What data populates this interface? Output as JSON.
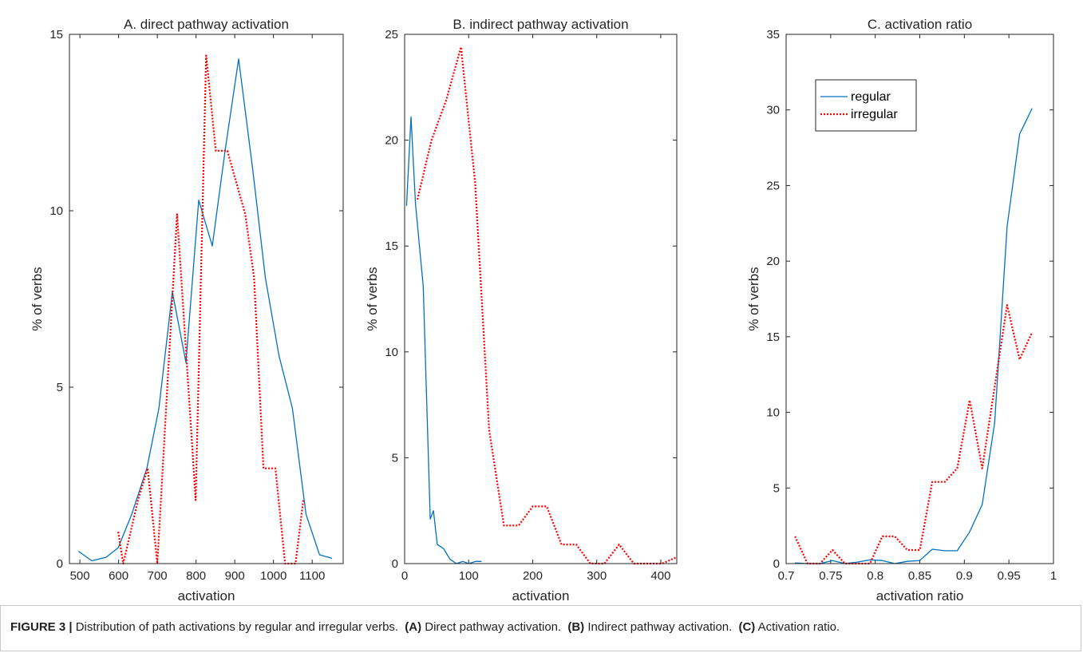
{
  "chart_data": [
    {
      "type": "line",
      "title": "A. direct pathway activation",
      "xlabel": "activation",
      "ylabel": "% of verbs",
      "xlim": [
        473,
        1180
      ],
      "xticks": [
        500,
        600,
        700,
        800,
        900,
        1000,
        1100
      ],
      "ylim": [
        0,
        15
      ],
      "yticks": [
        0,
        5,
        10,
        15
      ],
      "series": [
        {
          "name": "regular",
          "color": "#0072bd",
          "x": [
            496,
            531,
            568,
            599,
            634,
            673,
            704,
            739,
            774,
            807,
            842,
            875,
            910,
            946,
            979,
            1014,
            1049,
            1084,
            1119,
            1151
          ],
          "values": [
            0.35,
            0.08,
            0.18,
            0.45,
            1.4,
            2.7,
            4.4,
            7.7,
            5.7,
            10.3,
            9.0,
            11.7,
            14.3,
            11.2,
            8.1,
            5.9,
            4.4,
            1.4,
            0.25,
            0.15
          ]
        },
        {
          "name": "irregular",
          "color": "#ff0000",
          "dash": "dotted",
          "x": [
            599,
            612,
            650,
            675,
            700,
            751,
            799,
            826,
            851,
            881,
            927,
            950,
            974,
            1005,
            1030,
            1057,
            1077
          ],
          "values": [
            0.9,
            0,
            1.8,
            2.7,
            0,
            9.9,
            1.8,
            14.4,
            11.7,
            11.7,
            9.9,
            8.1,
            2.7,
            2.7,
            0,
            0,
            1.8
          ]
        }
      ]
    },
    {
      "type": "line",
      "title": "B. indirect pathway activation",
      "xlabel": "activation",
      "ylabel": "% of verbs",
      "xlim": [
        0,
        425
      ],
      "xticks": [
        0,
        100,
        200,
        300,
        400
      ],
      "ylim": [
        0,
        25
      ],
      "yticks": [
        0,
        5,
        10,
        15,
        20,
        25
      ],
      "series": [
        {
          "name": "regular",
          "color": "#0072bd",
          "x": [
            3,
            10,
            17,
            29,
            40,
            45,
            51,
            61,
            71,
            81,
            91,
            100,
            111,
            120
          ],
          "values": [
            16.9,
            21.1,
            17,
            13.1,
            2.1,
            2.5,
            0.9,
            0.7,
            0.2,
            0,
            0.1,
            0,
            0.1,
            0.1
          ]
        },
        {
          "name": "irregular",
          "color": "#ff0000",
          "dash": "dotted",
          "x": [
            20,
            42,
            65,
            88,
            110,
            132,
            155,
            178,
            200,
            222,
            245,
            268,
            290,
            312,
            335,
            358,
            380,
            402,
            425
          ],
          "values": [
            17.2,
            20,
            21.9,
            24.4,
            18,
            6.3,
            1.8,
            1.8,
            2.7,
            2.7,
            0.9,
            0.9,
            0,
            0,
            0.9,
            0,
            0,
            0,
            0.3
          ]
        }
      ]
    },
    {
      "type": "line",
      "title": "C. activation ratio",
      "xlabel": "activation ratio",
      "ylabel": "% of verbs",
      "xlim": [
        0.7,
        1
      ],
      "xticks": [
        0.7,
        0.75,
        0.8,
        0.85,
        0.9,
        0.95,
        1
      ],
      "ylim": [
        0,
        35
      ],
      "yticks": [
        0,
        5,
        10,
        15,
        20,
        25,
        30,
        35
      ],
      "legend": "upper left",
      "series": [
        {
          "name": "regular",
          "color": "#0072bd",
          "x": [
            0.71,
            0.724,
            0.738,
            0.752,
            0.766,
            0.78,
            0.794,
            0.808,
            0.822,
            0.836,
            0.85,
            0.864,
            0.878,
            0.892,
            0.906,
            0.92,
            0.934,
            0.948,
            0.962,
            0.976
          ],
          "values": [
            0.05,
            0,
            0,
            0.2,
            0,
            0.1,
            0.25,
            0.2,
            0,
            0.15,
            0.2,
            0.95,
            0.85,
            0.85,
            2.1,
            3.9,
            9.3,
            22.3,
            28.4,
            30.1
          ]
        },
        {
          "name": "irregular",
          "color": "#ff0000",
          "dash": "dotted",
          "x": [
            0.71,
            0.724,
            0.738,
            0.752,
            0.766,
            0.78,
            0.794,
            0.808,
            0.822,
            0.836,
            0.85,
            0.864,
            0.878,
            0.892,
            0.906,
            0.92,
            0.934,
            0.948,
            0.962,
            0.976
          ],
          "values": [
            1.8,
            0,
            0,
            0.9,
            0,
            0,
            0,
            1.8,
            1.8,
            0.9,
            0.9,
            5.4,
            5.4,
            6.3,
            10.8,
            6.3,
            11.7,
            17.1,
            13.5,
            15.3
          ]
        }
      ]
    }
  ],
  "caption": {
    "label": "FIGURE 3 |",
    "text": "Distribution of path activations by regular and irregular verbs.",
    "parts": [
      {
        "label": "(A)",
        "text": "Direct pathway activation."
      },
      {
        "label": "(B)",
        "text": "Indirect pathway activation."
      },
      {
        "label": "(C)",
        "text": "Activation ratio."
      }
    ]
  }
}
